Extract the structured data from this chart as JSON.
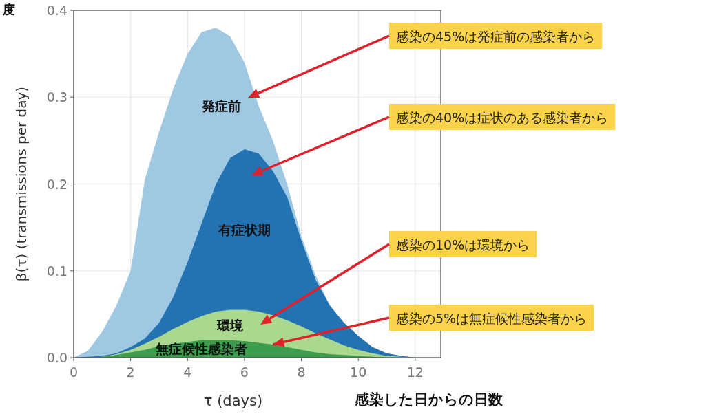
{
  "chart_data": {
    "type": "area",
    "xlabel": "τ (days)",
    "ylabel": "β(τ)  (transmissions per day)",
    "x": [
      0,
      0.5,
      1,
      1.5,
      2,
      2.5,
      3,
      3.5,
      4,
      4.5,
      5,
      5.5,
      6,
      6.5,
      7,
      7.5,
      8,
      8.5,
      9,
      9.5,
      10,
      10.5,
      11,
      11.5,
      12
    ],
    "series": [
      {
        "name": "発症前",
        "color": "#9fc9e2",
        "values": [
          0,
          0.008,
          0.03,
          0.06,
          0.1,
          0.205,
          0.26,
          0.31,
          0.35,
          0.375,
          0.38,
          0.37,
          0.34,
          0.29,
          0.25,
          0.2,
          0.14,
          0.095,
          0.06,
          0.04,
          0.025,
          0.012,
          0.005,
          0.002,
          0
        ]
      },
      {
        "name": "有症状期",
        "color": "#2373b3",
        "values": [
          0,
          0.001,
          0.002,
          0.005,
          0.012,
          0.022,
          0.04,
          0.07,
          0.11,
          0.155,
          0.2,
          0.23,
          0.24,
          0.235,
          0.215,
          0.185,
          0.135,
          0.09,
          0.06,
          0.04,
          0.025,
          0.012,
          0.005,
          0.002,
          0
        ]
      },
      {
        "name": "環境",
        "color": "#a9d88e",
        "values": [
          0,
          0,
          0.001,
          0.004,
          0.009,
          0.016,
          0.024,
          0.033,
          0.041,
          0.048,
          0.053,
          0.055,
          0.055,
          0.053,
          0.049,
          0.043,
          0.036,
          0.028,
          0.021,
          0.014,
          0.009,
          0.005,
          0.002,
          0.001,
          0
        ]
      },
      {
        "name": "無症候性感染者",
        "color": "#3c9e4c",
        "values": [
          0,
          0,
          0.001,
          0.003,
          0.006,
          0.009,
          0.013,
          0.016,
          0.018,
          0.02,
          0.02,
          0.02,
          0.019,
          0.017,
          0.015,
          0.012,
          0.009,
          0.006,
          0.004,
          0.003,
          0.002,
          0.001,
          0,
          0,
          0
        ]
      }
    ],
    "xlim": [
      0,
      12.9
    ],
    "ylim": [
      0,
      0.4
    ],
    "xticks": [
      0,
      2,
      4,
      6,
      8,
      10,
      12
    ],
    "yticks": [
      {
        "value": 0,
        "label": "0.0"
      },
      0.1,
      0.2,
      0.3,
      0.4
    ],
    "grid": true,
    "annotations": [
      "感染の45%は発症前の感染者から",
      "感染の40%は症状のある感染者から",
      "感染の10%は環境から",
      {
        "text": "感染の5%は無症候性感染者から",
        "x": 7,
        "y": 0.015
      },
      "感染した日からの日数",
      "度"
    ]
  }
}
